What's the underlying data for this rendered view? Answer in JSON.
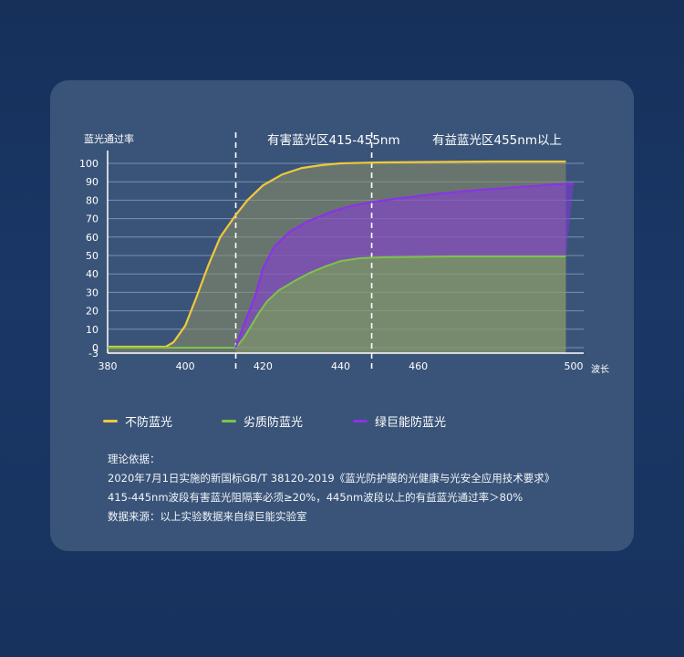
{
  "chart_data": {
    "type": "line",
    "ylabel": "蓝光通过率",
    "xlabel": "波长",
    "xlim": [
      380,
      500
    ],
    "ylim": [
      -3,
      103
    ],
    "x_ticks": [
      380,
      400,
      420,
      440,
      460,
      500
    ],
    "y_ticks": [
      100,
      90,
      80,
      70,
      60,
      50,
      40,
      30,
      20,
      10,
      0,
      -3
    ],
    "region_lines": [
      413,
      448
    ],
    "regions": [
      "有害蓝光区415-455nm",
      "有益蓝光区455nm以上"
    ],
    "series": [
      {
        "name": "不防蓝光",
        "color": "#f0c83c",
        "x": [
          380,
          390,
          395,
          397,
          400,
          403,
          406,
          409,
          413,
          416,
          420,
          425,
          430,
          435,
          440,
          450,
          460,
          480,
          498
        ],
        "y": [
          0.5,
          0.5,
          0.5,
          3,
          12,
          28,
          45,
          60,
          72,
          80,
          88,
          94,
          97.5,
          99,
          100,
          100.5,
          100.7,
          101,
          101
        ]
      },
      {
        "name": "劣质防蓝光",
        "color": "#7cc44a",
        "x": [
          380,
          395,
          405,
          413,
          415,
          417,
          419,
          421,
          424,
          428,
          432,
          436,
          440,
          445,
          450,
          470,
          498
        ],
        "y": [
          0,
          0,
          0,
          0,
          5,
          12,
          19,
          25,
          31,
          36,
          40.5,
          44,
          47,
          48.5,
          49,
          49.5,
          49.5
        ]
      },
      {
        "name": "绿巨能防蓝光",
        "color": "#8a33e6",
        "x": [
          413,
          415,
          418,
          420,
          423,
          427,
          432,
          438,
          443,
          448,
          455,
          465,
          475,
          485,
          495,
          500
        ],
        "y": [
          0,
          12,
          28,
          43,
          55,
          63,
          69,
          74,
          77,
          79,
          81,
          83.5,
          85.5,
          87,
          88.5,
          89
        ]
      }
    ]
  },
  "notes": {
    "heading": "理论依据：",
    "line1": "2020年7月1日实施的新国标GB/T 38120-2019《蓝光防护膜的光健康与光安全应用技术要求》",
    "line2": "415-445nm波段有害蓝光阻隔率必须≥20%，445nm波段以上的有益蓝光通过率＞80%",
    "line3": "数据来源：以上实验数据来自绿巨能实验室"
  }
}
